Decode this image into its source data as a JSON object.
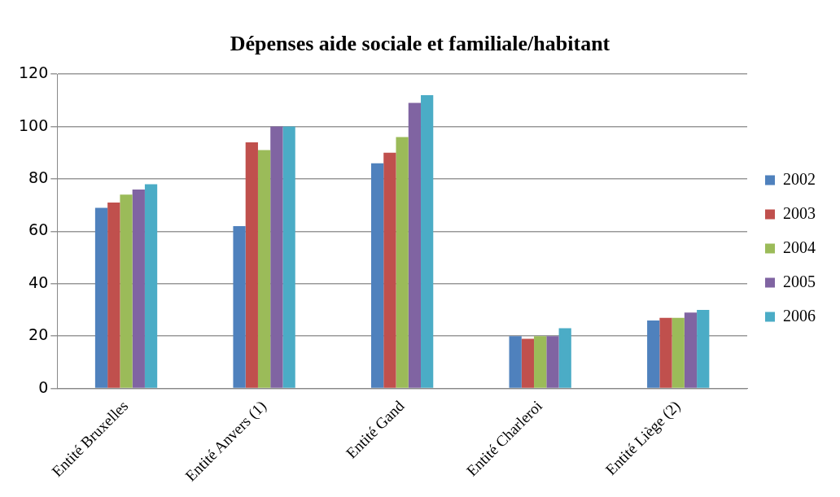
{
  "chart_data": {
    "type": "bar",
    "title": "Dépenses aide sociale et familiale/habitant",
    "categories": [
      "Entité Bruxelles",
      "Entité Anvers (1)",
      "Entité Gand",
      "Entité Charleroi",
      "Entité Liège (2)"
    ],
    "series": [
      {
        "name": "2002",
        "color": "#4f81bd",
        "values": [
          69,
          62,
          86,
          20,
          26
        ]
      },
      {
        "name": "2003",
        "color": "#c0504d",
        "values": [
          71,
          94,
          90,
          19,
          27
        ]
      },
      {
        "name": "2004",
        "color": "#9bbb59",
        "values": [
          74,
          91,
          96,
          20,
          27
        ]
      },
      {
        "name": "2005",
        "color": "#8064a2",
        "values": [
          76,
          100,
          109,
          20,
          29
        ]
      },
      {
        "name": "2006",
        "color": "#4bacc6",
        "values": [
          78,
          100,
          112,
          23,
          30
        ]
      }
    ],
    "ylim": [
      0,
      120
    ],
    "yticks": [
      0,
      20,
      40,
      60,
      80,
      100,
      120
    ],
    "grid": "y",
    "legend": "right"
  }
}
